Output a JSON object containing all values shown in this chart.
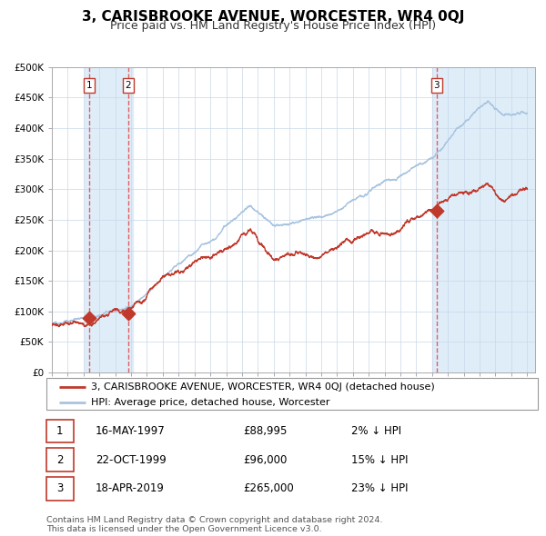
{
  "title": "3, CARISBROOKE AVENUE, WORCESTER, WR4 0QJ",
  "subtitle": "Price paid vs. HM Land Registry's House Price Index (HPI)",
  "ylim": [
    0,
    500000
  ],
  "yticks": [
    0,
    50000,
    100000,
    150000,
    200000,
    250000,
    300000,
    350000,
    400000,
    450000,
    500000
  ],
  "ytick_labels": [
    "£0",
    "£50K",
    "£100K",
    "£150K",
    "£200K",
    "£250K",
    "£300K",
    "£350K",
    "£400K",
    "£450K",
    "£500K"
  ],
  "hpi_color": "#a8c4e0",
  "price_color": "#c0392b",
  "dot_color": "#c0392b",
  "sale_dates": [
    1997.37,
    1999.81,
    2019.29
  ],
  "sale_prices": [
    88995,
    96000,
    265000
  ],
  "sale_labels": [
    "1",
    "2",
    "3"
  ],
  "vline_color": "#e05050",
  "shade_color": "#daeaf8",
  "legend_label_price": "3, CARISBROOKE AVENUE, WORCESTER, WR4 0QJ (detached house)",
  "legend_label_hpi": "HPI: Average price, detached house, Worcester",
  "table_rows": [
    {
      "num": "1",
      "date": "16-MAY-1997",
      "price": "£88,995",
      "pct": "2% ↓ HPI"
    },
    {
      "num": "2",
      "date": "22-OCT-1999",
      "price": "£96,000",
      "pct": "15% ↓ HPI"
    },
    {
      "num": "3",
      "date": "18-APR-2019",
      "price": "£265,000",
      "pct": "23% ↓ HPI"
    }
  ],
  "footer": "Contains HM Land Registry data © Crown copyright and database right 2024.\nThis data is licensed under the Open Government Licence v3.0.",
  "title_fontsize": 11,
  "subtitle_fontsize": 9,
  "tick_fontsize": 7.5,
  "legend_fontsize": 8,
  "table_fontsize": 8.5
}
